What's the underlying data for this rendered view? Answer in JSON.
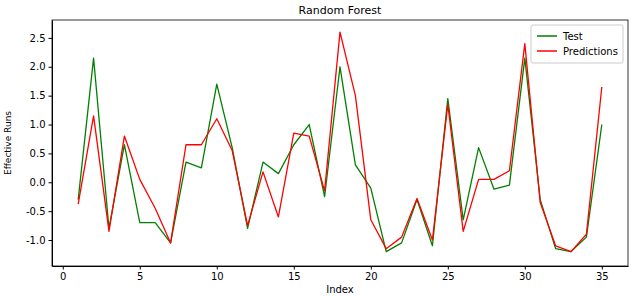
{
  "chart_data": {
    "type": "line",
    "title": "Random Forest",
    "x_label": "Index",
    "y_label": "Effective Runs",
    "x": [
      1,
      2,
      3,
      4,
      5,
      6,
      7,
      8,
      9,
      10,
      11,
      12,
      13,
      14,
      15,
      16,
      17,
      18,
      19,
      20,
      21,
      22,
      23,
      24,
      25,
      26,
      27,
      28,
      29,
      30,
      31,
      32,
      33,
      34,
      35
    ],
    "series": [
      {
        "name": "Test",
        "color": "#008000",
        "values": [
          -0.3,
          2.15,
          -0.8,
          0.65,
          -0.7,
          -0.7,
          -1.05,
          0.35,
          0.25,
          1.7,
          0.6,
          -0.8,
          0.35,
          0.15,
          0.65,
          1.0,
          -0.25,
          2.0,
          0.3,
          -0.1,
          -1.2,
          -1.05,
          -0.3,
          -1.1,
          1.45,
          -0.65,
          0.6,
          -0.12,
          -0.05,
          2.15,
          -0.3,
          -1.15,
          -1.2,
          -0.95,
          1.0
        ]
      },
      {
        "name": "Predictions",
        "color": "#ff0000",
        "values": [
          -0.38,
          1.15,
          -0.85,
          0.8,
          0.05,
          -0.45,
          -1.05,
          0.65,
          0.65,
          1.1,
          0.55,
          -0.75,
          0.18,
          -0.6,
          0.85,
          0.8,
          -0.15,
          2.6,
          1.5,
          -0.65,
          -1.15,
          -0.95,
          -0.28,
          -1.0,
          1.35,
          -0.85,
          0.05,
          0.05,
          0.2,
          2.4,
          -0.35,
          -1.1,
          -1.2,
          -0.9,
          1.65
        ]
      }
    ],
    "xlim": [
      -0.7,
      36.7
    ],
    "xticks": [
      0,
      5,
      10,
      15,
      20,
      25,
      30,
      35
    ],
    "ylim": [
      -1.45,
      2.81
    ],
    "yticks": [
      {
        "value": -1.0,
        "label": "-1.0"
      },
      -0.5,
      {
        "value": 0.0,
        "label": "0.0"
      },
      0.5,
      {
        "value": 1.0,
        "label": "1.0"
      },
      1.5,
      {
        "value": 2.0,
        "label": "2.0"
      },
      2.5
    ],
    "grid": false,
    "legend": "upper right"
  }
}
